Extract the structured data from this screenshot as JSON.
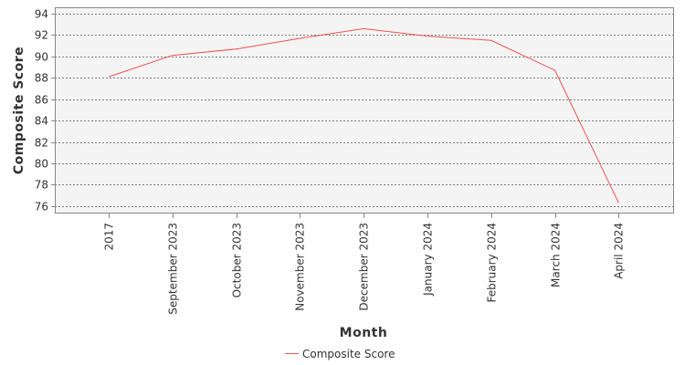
{
  "chart_data": {
    "type": "line",
    "categories": [
      "2017",
      "September 2023",
      "October 2023",
      "November 2023",
      "December 2023",
      "January 2024",
      "February 2024",
      "March 2024",
      "April 2024"
    ],
    "series": [
      {
        "name": "Composite Score",
        "color": "#f05050",
        "values": [
          88.1,
          90.1,
          90.7,
          91.7,
          92.6,
          91.9,
          91.5,
          88.7,
          76.3
        ]
      }
    ],
    "xlabel": "Month",
    "ylabel": "Composite Score",
    "ylim": [
      75.3,
      94.6
    ],
    "yticks": [
      76,
      78,
      80,
      82,
      84,
      86,
      88,
      90,
      92,
      94
    ],
    "grid": true,
    "legend": "bottom-center",
    "plot_background": "#f4f4f4",
    "grid_color": "#555555"
  }
}
